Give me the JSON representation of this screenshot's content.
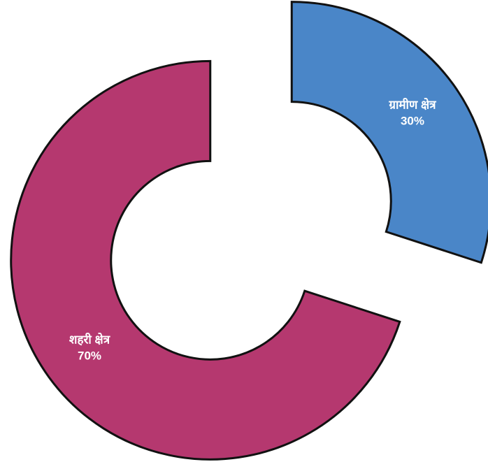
{
  "chart_data": {
    "type": "donut",
    "categories": [
      "ग्रामीण क्षेत्र",
      "शहरी क्षेत्र"
    ],
    "values": [
      30,
      70
    ],
    "value_labels": [
      "30%",
      "70%"
    ],
    "colors": [
      "#4a86c8",
      "#b5386f"
    ]
  }
}
